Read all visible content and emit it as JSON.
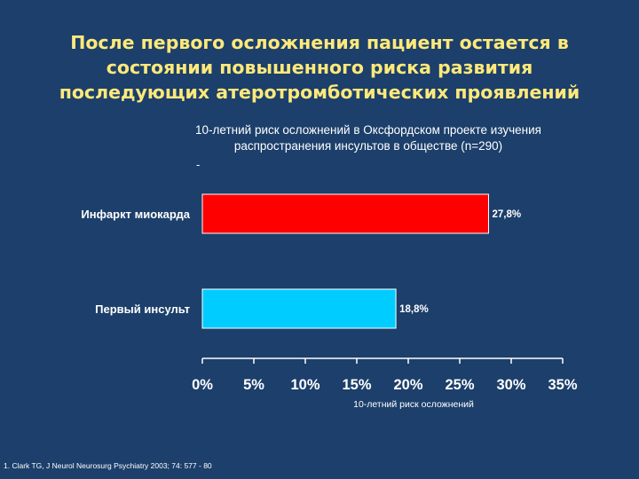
{
  "slide": {
    "title_lines": [
      "После первого осложнения пациент остается в",
      "состоянии повышенного риска развития",
      "последующих атеротромботических проявлений"
    ],
    "subtitle_lines": [
      "10-летний риск осложнений в Оксфордском проекте изучения",
      "распространения инсультов в обществе  (n=290)"
    ],
    "dash": "-",
    "footnote": "1. Clark TG, J Neurol Neurosurg Psychiatry 2003; 74: 577 - 80"
  },
  "chart_data": {
    "type": "bar",
    "orientation": "horizontal",
    "categories": [
      "Инфаркт миокарда",
      "Первый инсульт"
    ],
    "values": [
      27.8,
      18.8
    ],
    "data_labels": [
      "27,8%",
      "18,8%"
    ],
    "xlim": [
      0,
      35
    ],
    "xticks": [
      0,
      5,
      10,
      15,
      20,
      25,
      30,
      35
    ],
    "xtick_labels": [
      "0%",
      "5%",
      "10%",
      "15%",
      "20%",
      "25%",
      "30%",
      "35%"
    ],
    "xlabel": "10-летний риск осложнений",
    "ylabel": "",
    "grid": false,
    "colors": [
      "#ff0000",
      "#00ccff"
    ]
  }
}
